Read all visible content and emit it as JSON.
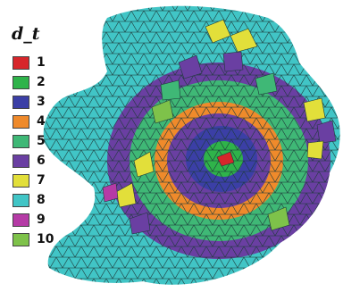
{
  "legend": {
    "title": "d_t",
    "items": [
      {
        "label": "1",
        "color": "#d7262b"
      },
      {
        "label": "2",
        "color": "#2fb34a"
      },
      {
        "label": "3",
        "color": "#3b3fa6"
      },
      {
        "label": "4",
        "color": "#ef8a2b"
      },
      {
        "label": "5",
        "color": "#3fb876"
      },
      {
        "label": "6",
        "color": "#6a3fa2"
      },
      {
        "label": "7",
        "color": "#e2df3a"
      },
      {
        "label": "8",
        "color": "#41c5c6"
      },
      {
        "label": "9",
        "color": "#b53ba6"
      },
      {
        "label": "10",
        "color": "#7ec24a"
      }
    ]
  }
}
